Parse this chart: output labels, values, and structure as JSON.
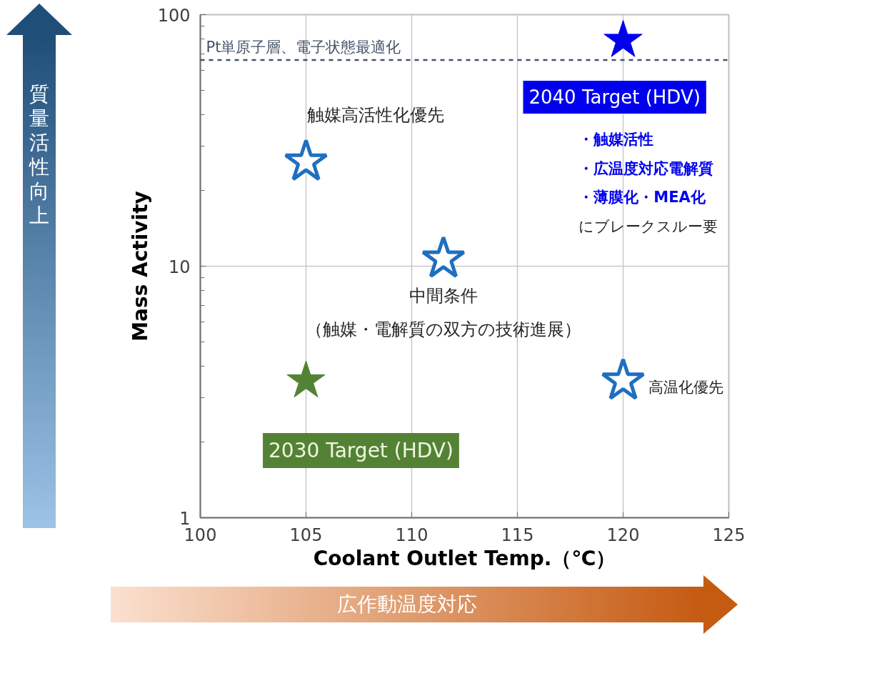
{
  "chart_data": {
    "type": "scatter",
    "xlabel": "Coolant Outlet Temp.（℃）",
    "ylabel": "Mass Activity",
    "xlim": [
      100,
      125
    ],
    "xticks": [
      100,
      105,
      110,
      115,
      120,
      125
    ],
    "ylim": [
      1,
      100
    ],
    "yticks": [
      1,
      10,
      100
    ],
    "log": "y",
    "grid": true,
    "marker": "star",
    "series": [
      {
        "color": "#548235",
        "x": [
          105
        ],
        "values": [
          3.5
        ]
      },
      {
        "color": "#1f6fc0",
        "x": [
          105,
          111.5,
          120
        ],
        "values": [
          26,
          10.7,
          3.5
        ]
      },
      {
        "color": "#0000ee",
        "x": [
          120
        ],
        "values": [
          79
        ]
      }
    ],
    "ref_lines": [
      {
        "axis": "y",
        "value": 66,
        "label": "Pt単原子層、電子状態最適化",
        "color": "#44546a",
        "line_style": "dashed"
      }
    ],
    "annotations": [
      "質量活性向上",
      "広作動温度対応",
      "触媒高活性化優先",
      "中間条件",
      "（触媒・電解質の双方の技術進展）",
      "高温化優先",
      "2040 Target (HDV)",
      "・触媒活性",
      "・広温度対応電解質",
      "・薄膜化・MEA化",
      "にブレークスルー要",
      "2030 Target (HDV)"
    ]
  }
}
